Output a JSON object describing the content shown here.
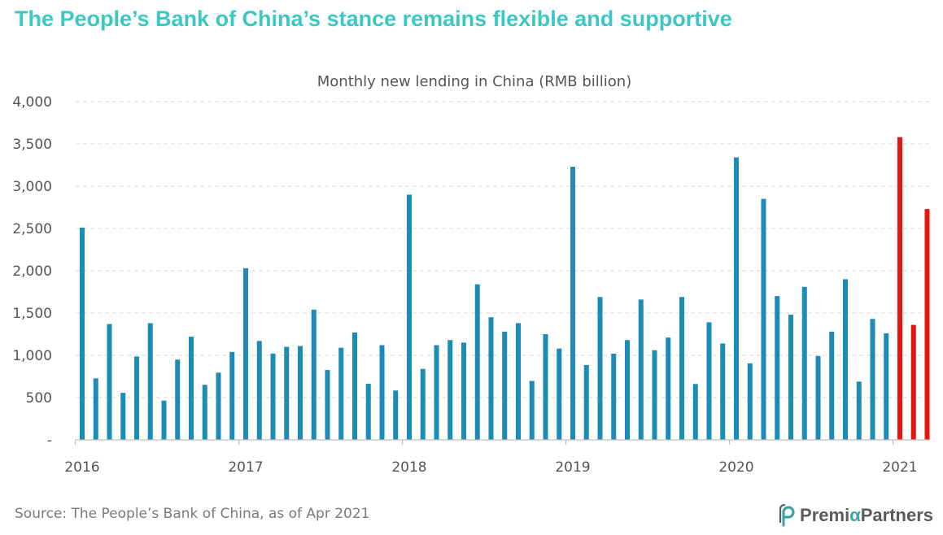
{
  "headline": "The People’s Bank of China’s stance remains flexible and supportive",
  "source": "Source: The People’s Bank of China, as of Apr 2021",
  "logo": {
    "prefix": "Premi",
    "alpha": "α",
    "suffix": "Partners"
  },
  "colors": {
    "headline": "#3cc7c3",
    "bar": "#1d8ab7",
    "highlight": "#e8150f"
  },
  "chart_data": {
    "type": "bar",
    "title": "Monthly new lending in China (RMB billion)",
    "xlabel": "",
    "ylabel": "",
    "ylim": [
      0,
      4000
    ],
    "yticks": [
      0,
      500,
      1000,
      1500,
      2000,
      2500,
      3000,
      3500,
      4000
    ],
    "ytick_labels": [
      "-",
      "500",
      "1,000",
      "1,500",
      "2,000",
      "2,500",
      "3,000",
      "3,500",
      "4,000"
    ],
    "x_tick_labels": [
      "2016",
      "2017",
      "2018",
      "2019",
      "2020",
      "2021"
    ],
    "grid": true,
    "categories": [
      "2016-01",
      "2016-02",
      "2016-03",
      "2016-04",
      "2016-05",
      "2016-06",
      "2016-07",
      "2016-08",
      "2016-09",
      "2016-10",
      "2016-11",
      "2016-12",
      "2017-01",
      "2017-02",
      "2017-03",
      "2017-04",
      "2017-05",
      "2017-06",
      "2017-07",
      "2017-08",
      "2017-09",
      "2017-10",
      "2017-11",
      "2017-12",
      "2018-01",
      "2018-02",
      "2018-03",
      "2018-04",
      "2018-05",
      "2018-06",
      "2018-07",
      "2018-08",
      "2018-09",
      "2018-10",
      "2018-11",
      "2018-12",
      "2019-01",
      "2019-02",
      "2019-03",
      "2019-04",
      "2019-05",
      "2019-06",
      "2019-07",
      "2019-08",
      "2019-09",
      "2019-10",
      "2019-11",
      "2019-12",
      "2020-01",
      "2020-02",
      "2020-03",
      "2020-04",
      "2020-05",
      "2020-06",
      "2020-07",
      "2020-08",
      "2020-09",
      "2020-10",
      "2020-11",
      "2020-12",
      "2021-01",
      "2021-02",
      "2021-03"
    ],
    "values": [
      2510,
      727,
      1370,
      556,
      986,
      1380,
      464,
      949,
      1220,
      651,
      795,
      1040,
      2030,
      1170,
      1020,
      1100,
      1110,
      1540,
      826,
      1090,
      1270,
      663,
      1120,
      584,
      2900,
      839,
      1120,
      1180,
      1150,
      1840,
      1450,
      1280,
      1380,
      697,
      1250,
      1080,
      3230,
      886,
      1690,
      1020,
      1180,
      1660,
      1060,
      1210,
      1690,
      661,
      1390,
      1140,
      3340,
      905,
      2850,
      1700,
      1480,
      1810,
      992,
      1280,
      1900,
      689,
      1430,
      1260,
      3580,
      1360,
      2730
    ],
    "highlighted": [
      "2021-01",
      "2021-02",
      "2021-03"
    ]
  }
}
